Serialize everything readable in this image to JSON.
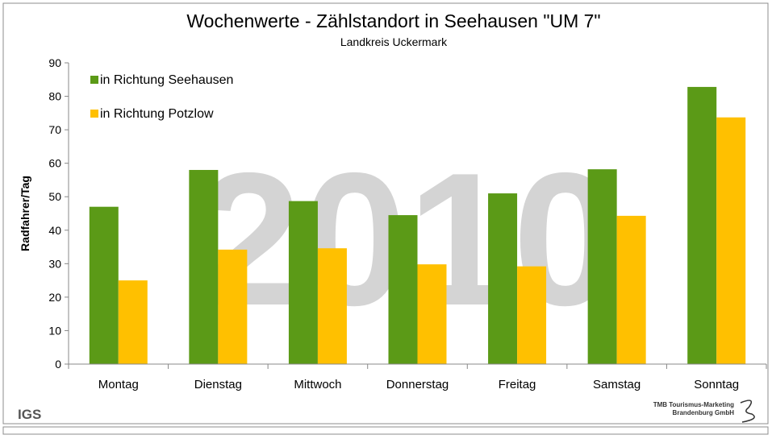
{
  "chart_data": {
    "type": "bar",
    "title": "Wochenwerte - Zählstandort in Seehausen \"UM 7\"",
    "subtitle": "Landkreis Uckermark",
    "watermark": "2010",
    "y_label": "Radfahrer/Tag",
    "categories": [
      "Montag",
      "Dienstag",
      "Mittwoch",
      "Donnerstag",
      "Freitag",
      "Samstag",
      "Sonntag"
    ],
    "series": [
      {
        "name": "in Richtung Seehausen",
        "color": "#5b9a17",
        "values": [
          47,
          58,
          48.7,
          44.5,
          51,
          58.2,
          82.8
        ]
      },
      {
        "name": "in Richtung Potzlow",
        "color": "#ffc000",
        "values": [
          25,
          34.2,
          34.6,
          29.8,
          29.2,
          44.3,
          73.7
        ]
      }
    ],
    "ylim": [
      0,
      90
    ],
    "yticks": [
      0,
      10,
      20,
      30,
      40,
      50,
      60,
      70,
      80,
      90
    ],
    "legend": "top-left",
    "footer_left": "IGS",
    "footer_right": [
      "TMB Tourismus-Marketing",
      "Brandenburg GmbH"
    ]
  }
}
